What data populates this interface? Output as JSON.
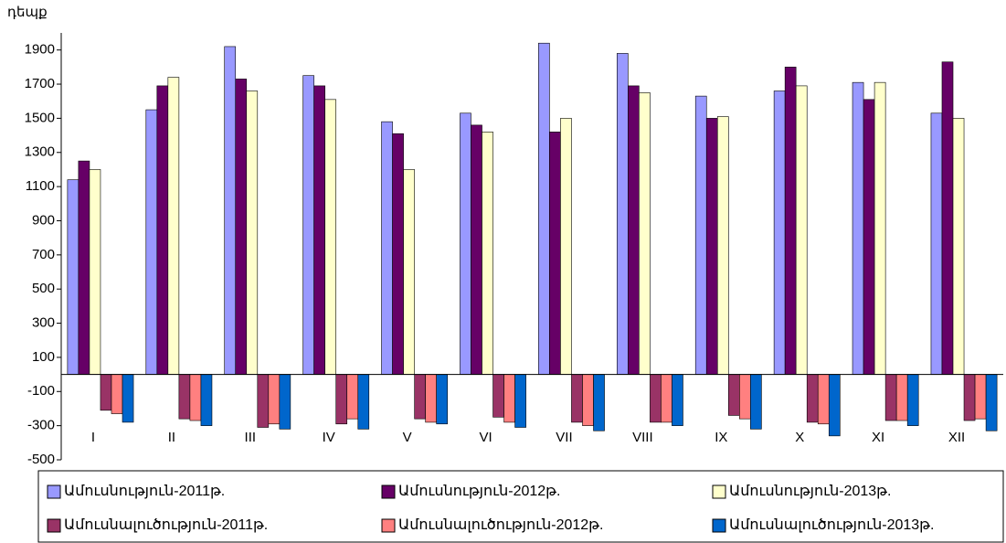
{
  "chart_data": {
    "type": "bar",
    "y_label": "դեպք",
    "categories": [
      "I",
      "II",
      "III",
      "IV",
      "V",
      "VI",
      "VII",
      "VIII",
      "IX",
      "X",
      "XI",
      "XII"
    ],
    "series": [
      {
        "name": "Ամուսնություն-2011թ.",
        "color": "#9999ff",
        "values": [
          1140,
          1550,
          1920,
          1750,
          1480,
          1530,
          1940,
          1880,
          1630,
          1660,
          1710,
          1530
        ]
      },
      {
        "name": "Ամուսնություն-2012թ.",
        "color": "#660066",
        "values": [
          1250,
          1690,
          1730,
          1690,
          1410,
          1460,
          1420,
          1690,
          1500,
          1800,
          1610,
          1830
        ]
      },
      {
        "name": "Ամուսնություն-2013թ.",
        "color": "#ffffcc",
        "values": [
          1200,
          1740,
          1660,
          1610,
          1200,
          1420,
          1500,
          1650,
          1510,
          1690,
          1710,
          1500
        ]
      },
      {
        "name": "Ամուսնալուծություն-2011թ.",
        "color": "#993366",
        "values": [
          -210,
          -260,
          -310,
          -290,
          -260,
          -250,
          -280,
          -280,
          -240,
          -280,
          -270,
          -270
        ]
      },
      {
        "name": "Ամուսնալուծություն-2012թ.",
        "color": "#ff8080",
        "values": [
          -230,
          -270,
          -290,
          -260,
          -280,
          -280,
          -300,
          -280,
          -260,
          -290,
          -270,
          -260
        ]
      },
      {
        "name": "Ամուսնալուծություն-2013թ.",
        "color": "#0066cc",
        "values": [
          -280,
          -300,
          -320,
          -320,
          -290,
          -310,
          -330,
          -300,
          -320,
          -360,
          -300,
          -330
        ]
      }
    ],
    "ylim": [
      -500,
      2000
    ],
    "yticks": [
      -500,
      -300,
      -100,
      100,
      300,
      500,
      700,
      900,
      1100,
      1300,
      1500,
      1700,
      1900
    ],
    "grid": false,
    "legend": "bottom"
  }
}
